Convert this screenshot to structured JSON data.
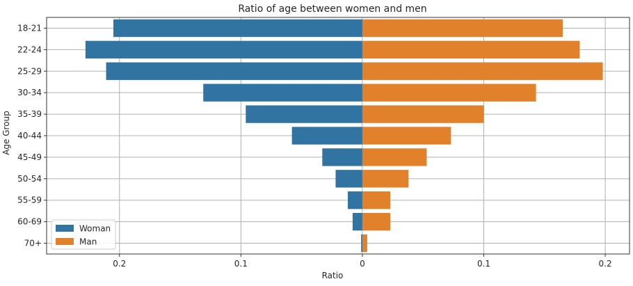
{
  "chart_data": {
    "type": "bar",
    "orientation": "horizontal",
    "title": "Ratio of age between women and men",
    "xlabel": "Ratio",
    "ylabel": "Age Group",
    "categories": [
      "18-21",
      "22-24",
      "25-29",
      "30-34",
      "35-39",
      "40-44",
      "45-49",
      "50-54",
      "55-59",
      "60-69",
      "70+"
    ],
    "series": [
      {
        "name": "Woman",
        "color": "#3274a1",
        "values": [
          -0.205,
          -0.228,
          -0.211,
          -0.131,
          -0.096,
          -0.058,
          -0.033,
          -0.022,
          -0.012,
          -0.008,
          -0.001
        ]
      },
      {
        "name": "Man",
        "color": "#e1812c",
        "values": [
          0.165,
          0.179,
          0.198,
          0.143,
          0.1,
          0.073,
          0.053,
          0.038,
          0.023,
          0.023,
          0.004
        ]
      }
    ],
    "xlim": [
      -0.26,
      0.22
    ],
    "xticks": [
      -0.2,
      -0.1,
      0,
      0.1,
      0.2
    ],
    "xtick_labels": [
      "0.2",
      "0.1",
      "0",
      "0.1",
      "0.2"
    ],
    "grid": true,
    "legend_position": "lower-left"
  }
}
